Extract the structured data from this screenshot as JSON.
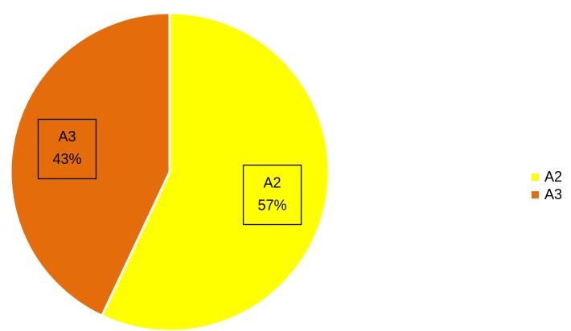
{
  "chart_data": {
    "type": "pie",
    "categories": [
      "A2",
      "A3"
    ],
    "values": [
      57,
      43
    ],
    "value_labels": [
      "57%",
      "43%"
    ],
    "colors": [
      "#ffff00",
      "#e46c0a"
    ],
    "legend": "right"
  }
}
